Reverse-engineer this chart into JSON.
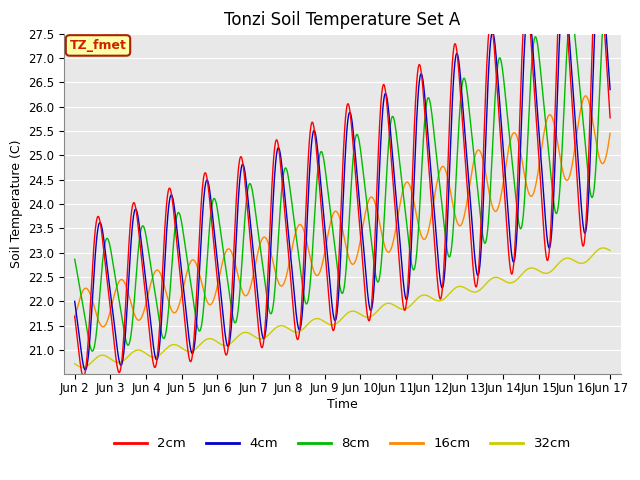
{
  "title": "Tonzi Soil Temperature Set A",
  "xlabel": "Time",
  "ylabel": "Soil Temperature (C)",
  "ylim": [
    20.5,
    27.5
  ],
  "yticks": [
    21.0,
    21.5,
    22.0,
    22.5,
    23.0,
    23.5,
    24.0,
    24.5,
    25.0,
    25.5,
    26.0,
    26.5,
    27.0,
    27.5
  ],
  "xtick_labels": [
    "Jun 2",
    "Jun 3",
    "Jun 4",
    "Jun 5",
    "Jun 6",
    "Jun 7",
    "Jun 8",
    "Jun 9",
    "Jun 10",
    "Jun 11",
    "Jun 12",
    "Jun 13",
    "Jun 14",
    "Jun 15",
    "Jun 16",
    "Jun 17"
  ],
  "colors": {
    "2cm": "#FF0000",
    "4cm": "#0000CC",
    "8cm": "#00BB00",
    "16cm": "#FF8800",
    "32cm": "#CCCC00"
  },
  "annotation_text": "TZ_fmet",
  "annotation_bg": "#FFFFAA",
  "annotation_border": "#AA2200",
  "plot_bg": "#E8E8E8",
  "grid_color": "#FFFFFF",
  "title_fontsize": 12,
  "axis_label_fontsize": 9,
  "tick_fontsize": 8.5
}
